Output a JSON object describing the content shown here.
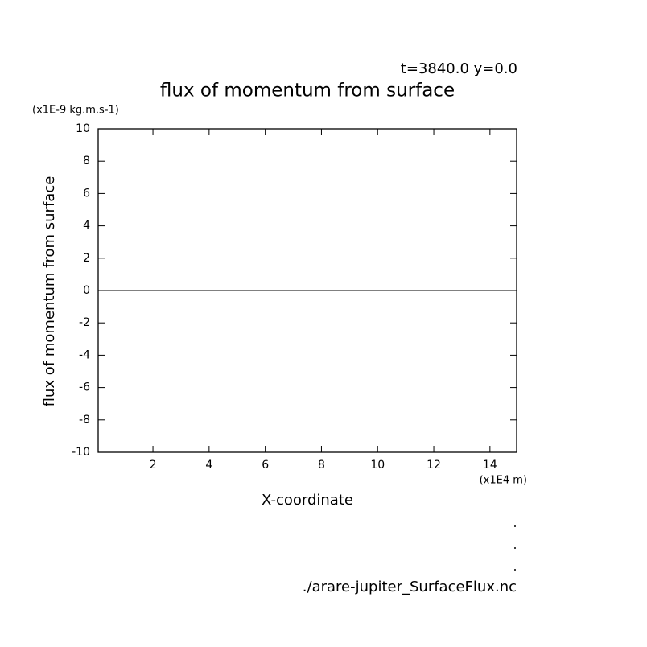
{
  "chart_data": {
    "type": "line",
    "title": "flux of momentum from surface",
    "subtitle": "t=3840.0 y=0.0",
    "y_unit": "(x1E-9 kg.m.s-1)",
    "x_unit": "(x1E4 m)",
    "xlabel": "X-coordinate",
    "ylabel": "flux of momentum from surface",
    "source": "./arare-jupiter_SurfaceFlux.nc",
    "x": [
      0.05,
      14.95
    ],
    "series": [
      {
        "color": "#000000",
        "values": [
          0,
          0
        ]
      }
    ],
    "xlim": [
      0.05,
      14.95
    ],
    "xticks": [
      2,
      4,
      6,
      8,
      10,
      12,
      14
    ],
    "ylim": [
      -10,
      10
    ],
    "yticks": [
      -10,
      -8,
      -6,
      -4,
      -2,
      0,
      2,
      4,
      6,
      8,
      10
    ],
    "grid": false
  }
}
